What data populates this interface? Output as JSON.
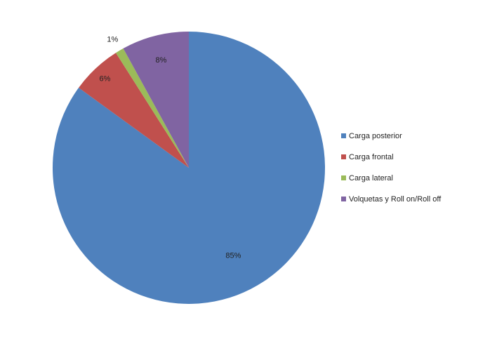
{
  "chart_data": {
    "type": "pie",
    "title": "",
    "start_angle_deg": 90,
    "direction": "clockwise",
    "legend_position": "right",
    "series": [
      {
        "name": "Carga posterior",
        "value": 85,
        "label": "85%",
        "color": "#4f81bd"
      },
      {
        "name": "Carga frontal",
        "value": 6,
        "label": "6%",
        "color": "#c0504d"
      },
      {
        "name": "Carga lateral",
        "value": 1,
        "label": "1%",
        "color": "#9bbb59"
      },
      {
        "name": "Volquetas y Roll on/Roll off",
        "value": 8,
        "label": "8%",
        "color": "#8064a2"
      }
    ]
  }
}
